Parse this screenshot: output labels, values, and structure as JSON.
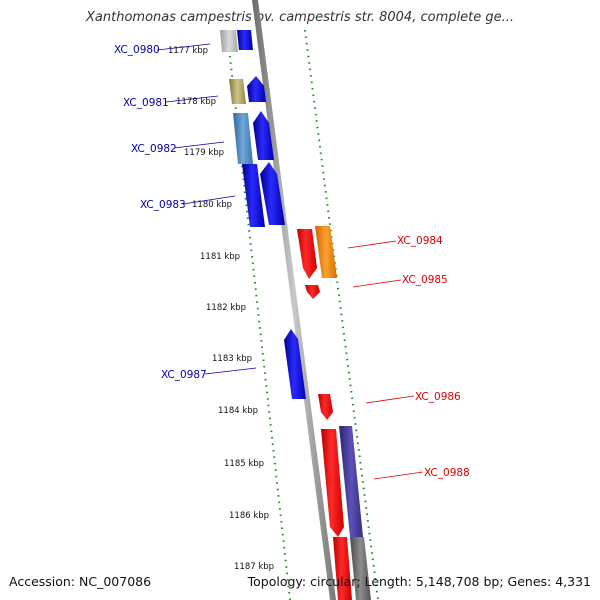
{
  "title": "Xanthomonas campestris pv. campestris str. 8004, complete ge...",
  "footer": {
    "accession": "Accession: NC_007086",
    "topology": "Topology: circular; Length: 5,148,708 bp; Genes: 4,331"
  },
  "ticks": [
    "1177 kbp",
    "1178 kbp",
    "1179 kbp",
    "1180 kbp",
    "1181 kbp",
    "1182 kbp",
    "1183 kbp",
    "1184 kbp",
    "1185 kbp",
    "1186 kbp",
    "1187 kbp"
  ],
  "gene_labels": {
    "left": [
      "XC_0980",
      "XC_0981",
      "XC_0982",
      "XC_0983",
      "XC_0987"
    ],
    "right": [
      "XC_0984",
      "XC_0985",
      "XC_0986",
      "XC_0988"
    ]
  },
  "colors": {
    "forward_strand": "#0000ee",
    "reverse_strand": "#ff0000",
    "left_label": "#0000aa",
    "right_label": "#dd0000",
    "tick_dots": "#228b22",
    "backbone": "#8a8a8a"
  }
}
